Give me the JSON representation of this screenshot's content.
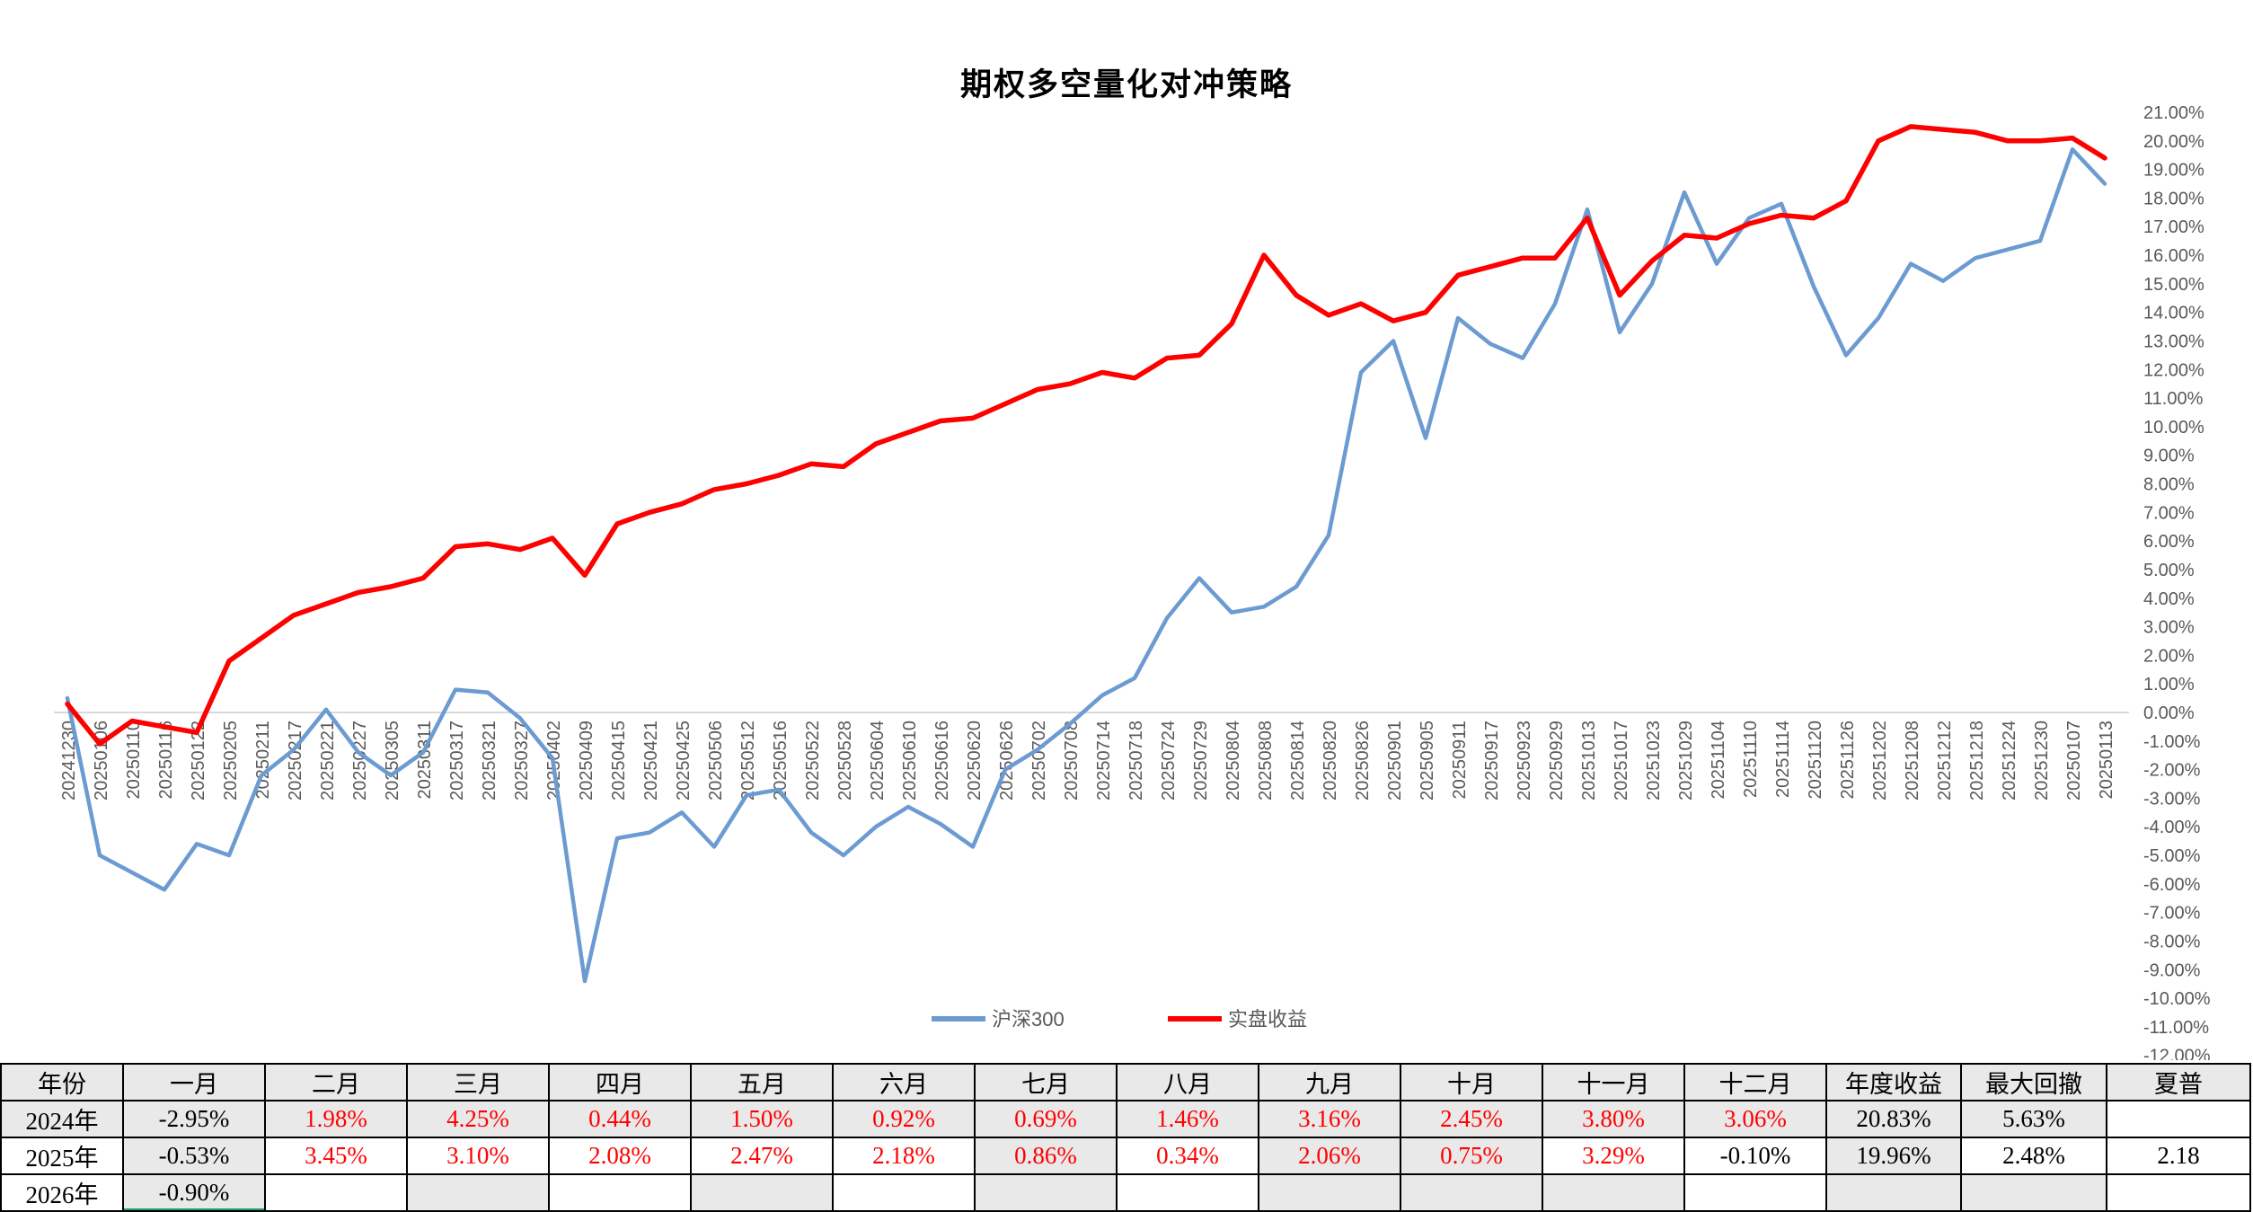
{
  "title": "期权多空量化对冲策略",
  "chart_data": {
    "type": "line",
    "title": "期权多空量化对冲策略",
    "x": [
      "20241230",
      "20250106",
      "20250110",
      "20250116",
      "20250122",
      "20250205",
      "20250211",
      "20250217",
      "20250221",
      "20250227",
      "20250305",
      "20250311",
      "20250317",
      "20250321",
      "20250327",
      "20250402",
      "20250409",
      "20250415",
      "20250421",
      "20250425",
      "20250506",
      "20250512",
      "20250516",
      "20250522",
      "20250528",
      "20250604",
      "20250610",
      "20250616",
      "20250620",
      "20250626",
      "20250702",
      "20250708",
      "20250714",
      "20250718",
      "20250724",
      "20250729",
      "20250804",
      "20250808",
      "20250814",
      "20250820",
      "20250826",
      "20250901",
      "20250905",
      "20250911",
      "20250917",
      "20250923",
      "20250929",
      "20251013",
      "20251017",
      "20251023",
      "20251029",
      "20251104",
      "20251110",
      "20251114",
      "20251120",
      "20251126",
      "20251202",
      "20251208",
      "20251212",
      "20251218",
      "20251224",
      "20251230",
      "20250107",
      "20250113"
    ],
    "series": [
      {
        "name": "沪深300",
        "color": "#6C9BD2",
        "values": [
          0.5,
          -5.0,
          -5.6,
          -6.2,
          -4.6,
          -5.0,
          -2.2,
          -1.3,
          0.1,
          -1.4,
          -2.2,
          -1.4,
          0.8,
          0.7,
          -0.2,
          -1.6,
          -9.4,
          -4.4,
          -4.2,
          -3.5,
          -4.7,
          -2.9,
          -2.7,
          -4.2,
          -5.0,
          -4.0,
          -3.3,
          -3.9,
          -4.7,
          -2.0,
          -1.3,
          -0.4,
          0.6,
          1.2,
          3.3,
          4.7,
          3.5,
          3.7,
          4.4,
          6.2,
          11.9,
          13.0,
          9.6,
          13.8,
          12.9,
          12.4,
          14.3,
          17.6,
          13.3,
          15.0,
          18.2,
          15.7,
          17.3,
          17.8,
          14.9,
          12.5,
          13.8,
          15.7,
          15.1,
          15.9,
          16.2,
          16.5,
          19.7,
          18.5
        ]
      },
      {
        "name": "实盘收益",
        "color": "#FF0000",
        "values": [
          0.3,
          -1.1,
          -0.3,
          -0.5,
          -0.7,
          1.8,
          2.6,
          3.4,
          3.8,
          4.2,
          4.4,
          4.7,
          5.8,
          5.9,
          5.7,
          6.1,
          4.8,
          6.6,
          7.0,
          7.3,
          7.8,
          8.0,
          8.3,
          8.7,
          8.6,
          9.4,
          9.8,
          10.2,
          10.3,
          10.8,
          11.3,
          11.5,
          11.9,
          11.7,
          12.4,
          12.5,
          13.6,
          16.0,
          14.6,
          13.9,
          14.3,
          13.7,
          14.0,
          15.3,
          15.6,
          15.9,
          15.9,
          17.3,
          14.6,
          15.8,
          16.7,
          16.6,
          17.1,
          17.4,
          17.3,
          17.9,
          20.0,
          20.5,
          20.4,
          20.3,
          20.0,
          20.0,
          20.1,
          19.4
        ]
      }
    ],
    "ylim": [
      -12,
      21
    ],
    "ytick_step": 1,
    "grid": "zero-line-only",
    "legend_position": "bottom-center",
    "y_axis_side": "right"
  },
  "y_axis_labels": [
    "21.00%",
    "20.00%",
    "19.00%",
    "18.00%",
    "17.00%",
    "16.00%",
    "15.00%",
    "14.00%",
    "13.00%",
    "12.00%",
    "11.00%",
    "10.00%",
    "9.00%",
    "8.00%",
    "7.00%",
    "6.00%",
    "5.00%",
    "4.00%",
    "3.00%",
    "2.00%",
    "1.00%",
    "0.00%",
    "-1.00%",
    "-2.00%",
    "-3.00%",
    "-4.00%",
    "-5.00%",
    "-6.00%",
    "-7.00%",
    "-8.00%",
    "-9.00%",
    "-10.00%",
    "-11.00%",
    "-12.00%"
  ],
  "colors": {
    "hs300_line": "#6C9BD2",
    "strategy_line": "#FF0000",
    "zero_gridline": "#D9D9D9",
    "axis_text": "#595959",
    "table_positive_text": "#FF0000",
    "table_shade": "#e9e9e9",
    "selection_green": "#21A366"
  },
  "table": {
    "headers": [
      "年份",
      "一月",
      "二月",
      "三月",
      "四月",
      "五月",
      "六月",
      "七月",
      "八月",
      "九月",
      "十月",
      "十一月",
      "十二月",
      "年度收益",
      "最大回撤",
      "夏普"
    ],
    "rows": [
      {
        "label": "2024年",
        "values": [
          "-2.95%",
          "1.98%",
          "4.25%",
          "0.44%",
          "1.50%",
          "0.92%",
          "0.69%",
          "1.46%",
          "3.16%",
          "2.45%",
          "3.80%",
          "3.06%",
          "20.83%",
          "5.63%",
          ""
        ],
        "red": [
          false,
          true,
          true,
          true,
          true,
          true,
          true,
          true,
          true,
          true,
          true,
          true,
          false,
          false,
          false
        ]
      },
      {
        "label": "2025年",
        "values": [
          "-0.53%",
          "3.45%",
          "3.10%",
          "2.08%",
          "2.47%",
          "2.18%",
          "0.86%",
          "0.34%",
          "2.06%",
          "0.75%",
          "3.29%",
          "-0.10%",
          "19.96%",
          "2.48%",
          "2.18"
        ],
        "red": [
          false,
          true,
          true,
          true,
          true,
          true,
          true,
          true,
          true,
          true,
          true,
          false,
          false,
          false,
          false
        ]
      },
      {
        "label": "2026年",
        "values": [
          "-0.90%",
          "",
          "",
          "",
          "",
          "",
          "",
          "",
          "",
          "",
          "",
          "",
          "",
          "",
          ""
        ],
        "red": [
          false,
          false,
          false,
          false,
          false,
          false,
          false,
          false,
          false,
          false,
          false,
          false,
          false,
          false,
          false
        ]
      }
    ]
  }
}
